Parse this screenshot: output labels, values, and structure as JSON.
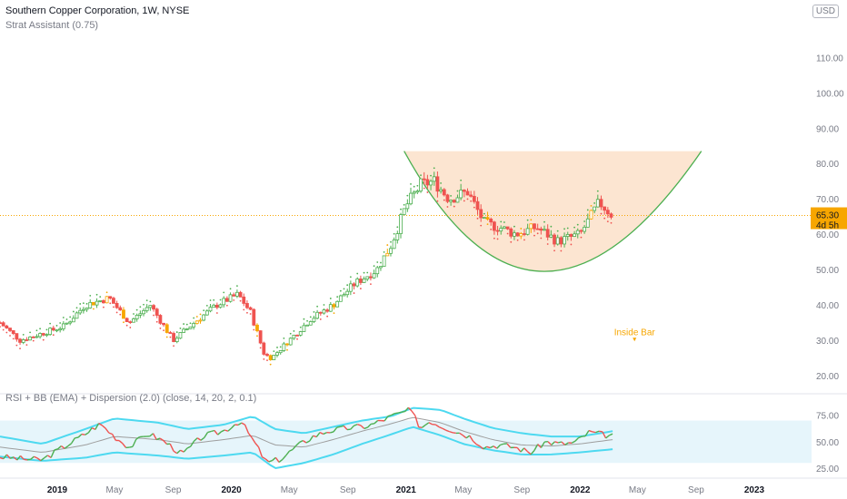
{
  "header": {
    "title": "Southern Copper Corporation, 1W, NYSE",
    "indicator": "Strat Assistant (0.75)",
    "currency": "USD"
  },
  "price_label": "65.30",
  "countdown_label": "4d 5h",
  "annotation_label": "Inside Bar",
  "colors": {
    "up": "#4caf50",
    "down": "#ef5350",
    "inside": "#f7a600",
    "cup_fill": "#fbe0c9",
    "cup_line": "#4caf50",
    "bb_band": "#4dd9f0",
    "bb_mid": "#9e9e9e",
    "rsi_up": "#4caf50",
    "rsi_down": "#ef5350",
    "price_line": "#f7a600"
  },
  "chart_data": [
    {
      "type": "candlestick",
      "title": "Southern Copper Corporation, 1W, NYSE",
      "y_ticks": [
        20,
        30,
        40,
        50,
        60,
        70,
        80,
        90,
        100,
        110
      ],
      "y_tick_labels": [
        "20.00",
        "30.00",
        "40.00",
        "50.00",
        "60.00",
        "70.00",
        "80.00",
        "90.00",
        "100.00",
        "110.00"
      ],
      "ylim": [
        16.7,
        117
      ],
      "x_ticks": [
        "2019",
        "May",
        "Sep",
        "2020",
        "May",
        "Sep",
        "2021",
        "May",
        "Sep",
        "2022",
        "May",
        "Sep",
        "2023"
      ],
      "x_tick_dates": [
        "2019-01-01",
        "2019-05-01",
        "2019-09-01",
        "2020-01-01",
        "2020-05-01",
        "2020-09-01",
        "2021-01-01",
        "2021-05-01",
        "2021-09-01",
        "2022-01-01",
        "2022-05-01",
        "2022-09-01",
        "2023-01-01"
      ],
      "xlim": [
        "2018-09-03",
        "2023-05-01"
      ],
      "close_series": {
        "dates": [
          "2018-09-03",
          "2018-10-15",
          "2018-12-01",
          "2019-01-15",
          "2019-03-01",
          "2019-04-20",
          "2019-06-01",
          "2019-07-15",
          "2019-09-01",
          "2019-10-15",
          "2019-12-01",
          "2020-01-15",
          "2020-02-10",
          "2020-03-10",
          "2020-03-25",
          "2020-05-01",
          "2020-06-15",
          "2020-08-01",
          "2020-09-15",
          "2020-11-01",
          "2020-12-01",
          "2021-01-01",
          "2021-02-01",
          "2021-03-01",
          "2021-04-01",
          "2021-05-10",
          "2021-06-15",
          "2021-07-15",
          "2021-08-20",
          "2021-10-01",
          "2021-11-15",
          "2022-01-01",
          "2022-02-10",
          "2022-03-10"
        ],
        "close": [
          35,
          30,
          32,
          34,
          40,
          42,
          35,
          40,
          30,
          35,
          40,
          43,
          38,
          26,
          25,
          30,
          36,
          40,
          46,
          50,
          57,
          68,
          74,
          75,
          70,
          72,
          63,
          62,
          60,
          62,
          58,
          60,
          69,
          65.3
        ]
      },
      "last_price": 65.3,
      "cup_pattern": {
        "rim_left": [
          "2020-12-28",
          83.5
        ],
        "rim_right": [
          "2022-09-12",
          83.5
        ],
        "bottom": [
          "2021-10-18",
          49.5
        ]
      },
      "annotation": {
        "text": "Inside Bar",
        "date": "2022-04-25",
        "value": 31.5
      }
    },
    {
      "type": "line",
      "title": "RSI + BB (EMA) + Dispersion (2.0) (close, 14, 20, 2, 0.1)",
      "y_ticks": [
        25,
        50,
        75
      ],
      "y_tick_labels": [
        "25.00",
        "50.00",
        "75.00"
      ],
      "ylim": [
        20,
        85
      ],
      "band": [
        30,
        70
      ],
      "series": [
        {
          "values": "rsi"
        },
        {
          "values": "bb_upper"
        },
        {
          "values": "bb_basis"
        },
        {
          "values": "bb_lower"
        }
      ],
      "rsi": {
        "dates": [
          "2018-09-03",
          "2018-10-15",
          "2018-12-01",
          "2019-01-10",
          "2019-02-20",
          "2019-04-01",
          "2019-05-01",
          "2019-06-01",
          "2019-07-10",
          "2019-08-15",
          "2019-09-20",
          "2019-11-01",
          "2019-12-15",
          "2020-01-20",
          "2020-02-20",
          "2020-03-15",
          "2020-04-15",
          "2020-05-15",
          "2020-06-20",
          "2020-07-20",
          "2020-09-01",
          "2020-10-15",
          "2020-12-01",
          "2021-01-10",
          "2021-02-01",
          "2021-02-20",
          "2021-03-15",
          "2021-04-15",
          "2021-05-15",
          "2021-06-15",
          "2021-07-15",
          "2021-08-15",
          "2021-09-20",
          "2021-10-20",
          "2021-11-20",
          "2021-12-20",
          "2022-01-20",
          "2022-02-15",
          "2022-03-10"
        ],
        "values": [
          36,
          34,
          33,
          44,
          55,
          67,
          55,
          45,
          58,
          50,
          38,
          55,
          60,
          70,
          48,
          30,
          34,
          45,
          55,
          60,
          63,
          65,
          74,
          80,
          63,
          70,
          65,
          60,
          55,
          45,
          47,
          45,
          40,
          50,
          48,
          49,
          59,
          57,
          55
        ]
      },
      "bb_upper": {
        "dates": [
          "2018-09-03",
          "2018-12-01",
          "2019-03-01",
          "2019-05-01",
          "2019-08-01",
          "2019-10-01",
          "2019-12-15",
          "2020-02-15",
          "2020-04-01",
          "2020-06-01",
          "2020-08-01",
          "2020-10-01",
          "2020-12-01",
          "2021-01-15",
          "2021-03-15",
          "2021-05-01",
          "2021-07-01",
          "2021-09-01",
          "2021-11-01",
          "2022-01-01",
          "2022-03-10"
        ],
        "values": [
          55,
          48,
          62,
          72,
          68,
          62,
          66,
          74,
          62,
          58,
          64,
          70,
          74,
          82,
          80,
          72,
          63,
          58,
          55,
          55,
          60
        ]
      },
      "bb_basis": {
        "dates": [
          "2018-09-03",
          "2018-12-01",
          "2019-03-01",
          "2019-05-01",
          "2019-08-01",
          "2019-10-01",
          "2019-12-15",
          "2020-02-15",
          "2020-04-01",
          "2020-06-01",
          "2020-08-01",
          "2020-10-01",
          "2020-12-01",
          "2021-01-15",
          "2021-03-15",
          "2021-05-01",
          "2021-07-01",
          "2021-09-01",
          "2021-11-01",
          "2022-01-01",
          "2022-03-10"
        ],
        "values": [
          45,
          40,
          47,
          55,
          52,
          48,
          52,
          56,
          47,
          45,
          52,
          60,
          67,
          73,
          68,
          60,
          52,
          47,
          46,
          48,
          52
        ]
      },
      "bb_lower": {
        "dates": [
          "2018-09-03",
          "2018-12-01",
          "2019-03-01",
          "2019-05-01",
          "2019-08-01",
          "2019-10-01",
          "2019-12-15",
          "2020-02-15",
          "2020-04-01",
          "2020-06-01",
          "2020-08-01",
          "2020-10-01",
          "2020-12-01",
          "2021-01-15",
          "2021-03-15",
          "2021-05-01",
          "2021-07-01",
          "2021-09-01",
          "2021-11-01",
          "2022-01-01",
          "2022-03-10"
        ],
        "values": [
          36,
          32,
          35,
          40,
          37,
          34,
          37,
          40,
          25,
          30,
          38,
          48,
          57,
          64,
          56,
          48,
          42,
          38,
          38,
          40,
          43
        ]
      }
    }
  ]
}
